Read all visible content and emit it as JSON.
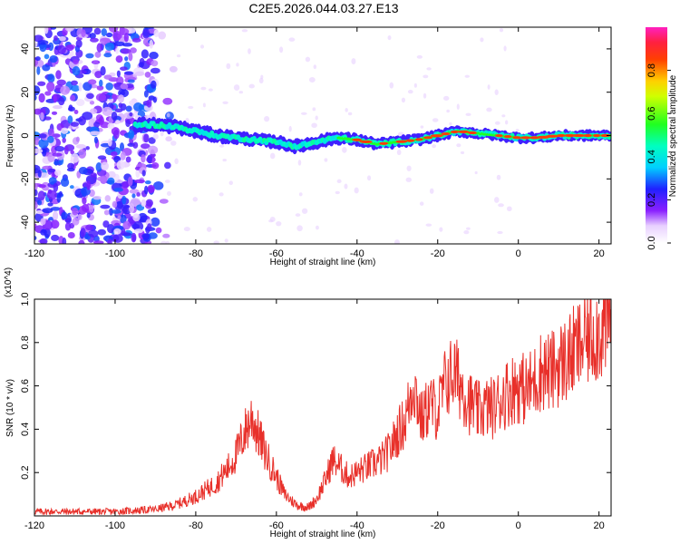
{
  "title": "C2E5.2026.044.03.27.E13",
  "chart_data": [
    {
      "type": "heatmap",
      "title": "C2E5.2026.044.03.27.E13",
      "xlabel": "Height of straight line (km)",
      "ylabel": "Frequency (Hz)",
      "xlim": [
        -120,
        23
      ],
      "ylim": [
        -50,
        50
      ],
      "x_ticks": [
        "-120",
        "-100",
        "-80",
        "-60",
        "-40",
        "-20",
        "0",
        "20"
      ],
      "x_tick_values": [
        -120,
        -100,
        -80,
        -60,
        -40,
        -20,
        0,
        20
      ],
      "y_ticks": [
        "-40",
        "-20",
        "0",
        "20",
        "40"
      ],
      "y_tick_values": [
        -40,
        -20,
        0,
        20,
        40
      ],
      "colorbar": {
        "label": "Normalized spectral amplitude",
        "range": [
          0,
          1
        ],
        "ticks": [
          "0.0",
          "0.2",
          "0.4",
          "0.6",
          "0.8"
        ],
        "tick_values": [
          0.0,
          0.2,
          0.4,
          0.6,
          0.8
        ],
        "colormap": "rainbow (white-magenta-blue-cyan-green-yellow-red-magenta)"
      },
      "ridge": {
        "description": "dominant frequency band vs height",
        "x": [
          -95,
          -90,
          -85,
          -80,
          -75,
          -70,
          -65,
          -60,
          -55,
          -50,
          -45,
          -40,
          -35,
          -30,
          -25,
          -20,
          -15,
          -10,
          -5,
          0,
          5,
          10,
          15,
          20,
          23
        ],
        "y": [
          5,
          5,
          4,
          2,
          0,
          -1,
          -2,
          -3,
          -5,
          -3,
          -1,
          -2,
          -4,
          -3,
          -2,
          0,
          2,
          1,
          0,
          -1,
          -1,
          0,
          0,
          0,
          0
        ],
        "amplitude": [
          0.35,
          0.4,
          0.4,
          0.35,
          0.45,
          0.55,
          0.6,
          0.55,
          0.45,
          0.5,
          0.6,
          0.7,
          0.8,
          0.75,
          0.8,
          0.85,
          0.9,
          0.9,
          0.95,
          0.95,
          0.95,
          0.95,
          0.95,
          0.9,
          0.9
        ]
      },
      "noise_region": {
        "x_range": [
          -120,
          -90
        ],
        "amplitude_range": [
          0.05,
          0.3
        ]
      }
    },
    {
      "type": "line",
      "xlabel": "Height of straight line (km)",
      "ylabel": "SNR (10 * v/v)",
      "y_multiplier": "(x10^4)",
      "xlim": [
        -120,
        23
      ],
      "ylim": [
        0,
        1.0
      ],
      "x_ticks": [
        "-120",
        "-100",
        "-80",
        "-60",
        "-40",
        "-20",
        "0",
        "20"
      ],
      "x_tick_values": [
        -120,
        -100,
        -80,
        -60,
        -40,
        -20,
        0,
        20
      ],
      "y_ticks": [
        "0.2",
        "0.4",
        "0.6",
        "0.8",
        "1.0"
      ],
      "y_tick_values": [
        0.2,
        0.4,
        0.6,
        0.8,
        1.0
      ],
      "color": "#e8302a",
      "x": [
        -120,
        -110,
        -100,
        -90,
        -85,
        -80,
        -75,
        -72,
        -70,
        -68,
        -66,
        -65,
        -63,
        -60,
        -58,
        -55,
        -52,
        -50,
        -48,
        -46,
        -44,
        -42,
        -40,
        -38,
        -36,
        -34,
        -32,
        -30,
        -28,
        -26,
        -24,
        -22,
        -20,
        -18,
        -16,
        -14,
        -12,
        -10,
        -8,
        -6,
        -4,
        -2,
        0,
        2,
        4,
        6,
        8,
        10,
        12,
        14,
        16,
        18,
        20,
        23
      ],
      "y": [
        0.02,
        0.02,
        0.02,
        0.03,
        0.05,
        0.09,
        0.15,
        0.22,
        0.28,
        0.38,
        0.46,
        0.4,
        0.3,
        0.18,
        0.1,
        0.05,
        0.04,
        0.08,
        0.16,
        0.26,
        0.22,
        0.18,
        0.2,
        0.22,
        0.24,
        0.26,
        0.3,
        0.38,
        0.44,
        0.62,
        0.44,
        0.52,
        0.48,
        0.62,
        0.66,
        0.6,
        0.52,
        0.48,
        0.5,
        0.5,
        0.55,
        0.58,
        0.6,
        0.58,
        0.62,
        0.68,
        0.66,
        0.7,
        0.72,
        0.76,
        0.8,
        0.84,
        0.85,
        0.9
      ]
    }
  ]
}
